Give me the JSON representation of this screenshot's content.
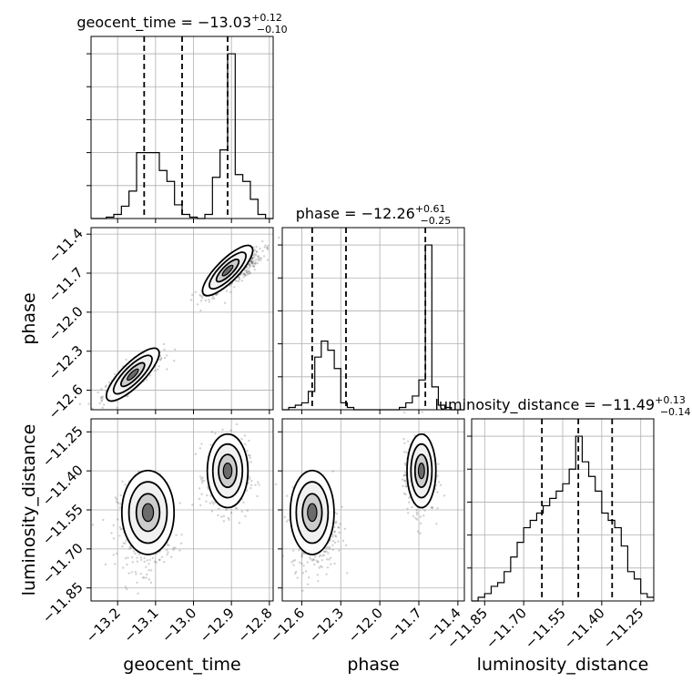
{
  "chart_data": {
    "type": "corner",
    "params": [
      {
        "name": "geocent_time",
        "range": [
          -13.27,
          -12.79
        ],
        "ticks": [
          -13.2,
          -13.1,
          -13.0,
          -12.9,
          -12.8
        ],
        "tick_labels": [
          "−13.2",
          "−13.1",
          "−13.0",
          "−12.9",
          "−12.8"
        ],
        "title": {
          "prefix": "geocent_time = ",
          "value": "−13.03",
          "plus": "+0.12",
          "minus": "−0.10"
        },
        "quantiles": [
          -13.13,
          -13.03,
          -12.91
        ],
        "hist": {
          "edges": [
            -13.27,
            -13.25,
            -13.23,
            -13.21,
            -13.19,
            -13.17,
            -13.15,
            -13.13,
            -13.11,
            -13.09,
            -13.07,
            -13.05,
            -13.03,
            -13.01,
            -12.99,
            -12.97,
            -12.95,
            -12.93,
            -12.91,
            -12.89,
            -12.87,
            -12.85,
            -12.83,
            -12.81,
            -12.79
          ],
          "counts": [
            0,
            0,
            1,
            3,
            9,
            20,
            48,
            48,
            48,
            35,
            27,
            10,
            3,
            1,
            0,
            3,
            30,
            50,
            120,
            32,
            27,
            14,
            3,
            0
          ]
        }
      },
      {
        "name": "phase",
        "range": [
          -12.75,
          -11.35
        ],
        "ticks": [
          -12.6,
          -12.3,
          -12.0,
          -11.7,
          -11.4
        ],
        "tick_labels": [
          "−12.6",
          "−12.3",
          "−12.0",
          "−11.7",
          "−11.4"
        ],
        "title": {
          "prefix": "phase = ",
          "value": "−12.26",
          "plus": "+0.61",
          "minus": "−0.25"
        },
        "quantiles": [
          -12.52,
          -12.26,
          -11.65
        ],
        "hist": {
          "edges": [
            -12.75,
            -12.7,
            -12.65,
            -12.6,
            -12.55,
            -12.5,
            -12.45,
            -12.4,
            -12.35,
            -12.3,
            -12.25,
            -12.2,
            -12.15,
            -12.1,
            -12.05,
            -12.0,
            -11.95,
            -11.9,
            -11.85,
            -11.8,
            -11.75,
            -11.7,
            -11.65,
            -11.6,
            -11.55,
            -11.5,
            -11.45,
            -11.4,
            -11.35
          ],
          "counts": [
            0,
            1,
            2,
            3,
            8,
            23,
            30,
            26,
            18,
            3,
            1,
            0,
            0,
            0,
            0,
            0,
            0,
            0,
            1,
            3,
            6,
            13,
            72,
            10,
            2,
            1,
            0,
            0
          ]
        }
      },
      {
        "name": "luminosity_distance",
        "range": [
          -11.9,
          -11.2
        ],
        "ticks": [
          -11.85,
          -11.7,
          -11.55,
          -11.4,
          -11.25
        ],
        "tick_labels": [
          "−11.85",
          "−11.70",
          "−11.55",
          "−11.40",
          "−11.25"
        ],
        "title": {
          "prefix": "luminosity_distance = ",
          "value": "−11.49",
          "plus": "+0.13",
          "minus": "−0.14"
        },
        "quantiles": [
          -11.63,
          -11.49,
          -11.36
        ],
        "hist": {
          "edges": [
            -11.9,
            -11.875,
            -11.85,
            -11.825,
            -11.8,
            -11.775,
            -11.75,
            -11.725,
            -11.7,
            -11.675,
            -11.65,
            -11.625,
            -11.6,
            -11.575,
            -11.55,
            -11.525,
            -11.5,
            -11.475,
            -11.45,
            -11.425,
            -11.4,
            -11.375,
            -11.35,
            -11.325,
            -11.3,
            -11.275,
            -11.25,
            -11.225,
            -11.2
          ],
          "counts": [
            0,
            1,
            2,
            4,
            5,
            8,
            12,
            16,
            20,
            22,
            24,
            26,
            28,
            30,
            32,
            36,
            45,
            38,
            34,
            30,
            24,
            22,
            20,
            15,
            8,
            6,
            2,
            1
          ]
        }
      }
    ],
    "axis_labels": {
      "x": [
        "geocent_time",
        "phase",
        "luminosity_distance"
      ],
      "y": [
        "phase",
        "luminosity_distance"
      ]
    },
    "pairs": [
      {
        "x": 0,
        "y": 1,
        "clusters": [
          {
            "x": [
              -13.26,
              -13.06
            ],
            "y": [
              -12.72,
              -12.26
            ]
          },
          {
            "x": [
              -12.99,
              -12.8
            ],
            "y": [
              -11.92,
              -11.48
            ]
          }
        ],
        "contour_centers": [
          [
            -13.16,
            -12.48
          ],
          [
            -12.91,
            -11.68
          ]
        ]
      },
      {
        "x": 0,
        "y": 2,
        "clusters": [
          {
            "x": [
              -13.22,
              -13.04
            ],
            "y": [
              -11.82,
              -11.42
            ]
          },
          {
            "x": [
              -12.98,
              -12.84
            ],
            "y": [
              -11.6,
              -11.25
            ]
          }
        ],
        "contour_centers": [
          [
            -13.12,
            -11.56
          ],
          [
            -12.91,
            -11.4
          ]
        ]
      },
      {
        "x": 1,
        "y": 2,
        "clusters": [
          {
            "x": [
              -12.72,
              -12.28
            ],
            "y": [
              -11.82,
              -11.42
            ]
          },
          {
            "x": [
              -11.84,
              -11.55
            ],
            "y": [
              -11.6,
              -11.25
            ]
          }
        ],
        "contour_centers": [
          [
            -12.52,
            -11.56
          ],
          [
            -11.68,
            -11.4
          ]
        ]
      }
    ],
    "grid": true,
    "colors": {
      "line": "#000000",
      "grid": "#b0b0b0",
      "points": "#000000"
    }
  }
}
